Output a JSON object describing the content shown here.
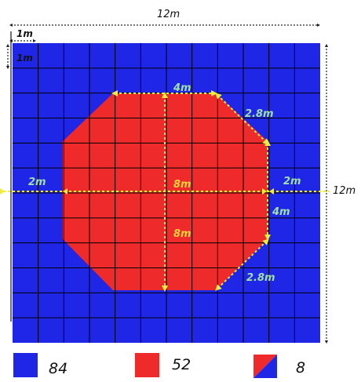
{
  "dimensions": {
    "total_width": "12m",
    "total_height": "12m",
    "cell_width": "1m",
    "cell_height": "1m",
    "octagon_top_edge": "4m",
    "octagon_diagonal_top": "2.8m",
    "octagon_diagonal_bottom": "2.8m",
    "left_margin": "2m",
    "right_margin": "2m",
    "right_edge": "4m",
    "octagon_width": "8m",
    "octagon_height": "8m"
  },
  "legend": [
    {
      "name": "legend-blue",
      "count": "84",
      "kind": "solid",
      "color": "#1f26e6"
    },
    {
      "name": "legend-red",
      "count": "52",
      "kind": "solid",
      "color": "#ee2a2a"
    },
    {
      "name": "legend-split",
      "count": "8",
      "kind": "split",
      "color": "#ee2a2a",
      "color2": "#1f26e6"
    }
  ],
  "colors": {
    "blue": "#1f26e6",
    "red": "#ee2a2a",
    "grid": "#000000",
    "dimension_yellow": "#f2ec3c",
    "label_on_blue": "#9fe0a6",
    "label_on_red": "#f0d43a"
  }
}
